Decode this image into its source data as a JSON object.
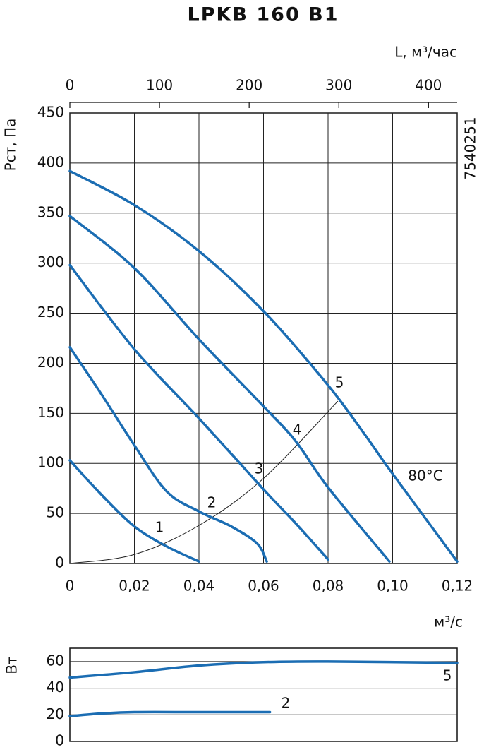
{
  "chart_data": [
    {
      "type": "line",
      "title": "LPKB 160 B1",
      "x2label": "L, м³/час",
      "ylabel": "Pст, Па",
      "xlabel": "м³/с",
      "code": "7540251",
      "annotation": "80°C",
      "grid": true,
      "xlim": [
        0,
        0.12
      ],
      "xticks": [
        0,
        {
          "value": 0.02,
          "label": "0,02"
        },
        {
          "value": 0.04,
          "label": "0,04"
        },
        {
          "value": 0.06,
          "label": "0,06"
        },
        {
          "value": 0.08,
          "label": "0,08"
        },
        {
          "value": 0.1,
          "label": "0,10"
        },
        {
          "value": 0.12,
          "label": "0,12"
        }
      ],
      "x2lim": [
        0,
        432
      ],
      "x2ticks": [
        0,
        100,
        200,
        300,
        400
      ],
      "ylim": [
        0,
        450
      ],
      "yticks": [
        0,
        50,
        100,
        150,
        200,
        250,
        300,
        350,
        400,
        450
      ],
      "series": [
        {
          "name": "1",
          "color": "#1b6db3",
          "x": [
            0,
            0.01,
            0.02,
            0.03,
            0.04
          ],
          "values": [
            103,
            68,
            37,
            17,
            2
          ]
        },
        {
          "name": "2",
          "color": "#1b6db3",
          "x": [
            0,
            0.01,
            0.02,
            0.03,
            0.04,
            0.05,
            0.058,
            0.061
          ],
          "values": [
            216,
            168,
            118,
            72,
            52,
            37,
            20,
            2
          ]
        },
        {
          "name": "3",
          "color": "#1b6db3",
          "x": [
            0,
            0.02,
            0.04,
            0.06,
            0.07,
            0.08
          ],
          "values": [
            298,
            214,
            145,
            74,
            40,
            4
          ]
        },
        {
          "name": "4",
          "color": "#1b6db3",
          "x": [
            0,
            0.02,
            0.04,
            0.06,
            0.07,
            0.08,
            0.099
          ],
          "values": [
            347,
            295,
            224,
            157,
            122,
            76,
            2
          ]
        },
        {
          "name": "5",
          "color": "#1b6db3",
          "x": [
            0,
            0.02,
            0.04,
            0.06,
            0.08,
            0.092,
            0.099,
            0.12
          ],
          "values": [
            392,
            358,
            312,
            252,
            178,
            126,
            94,
            2
          ]
        }
      ],
      "system_curve": {
        "color": "#222222",
        "x": [
          0,
          0.02,
          0.04,
          0.06,
          0.083
        ],
        "values": [
          0,
          9,
          38,
          85,
          162
        ]
      }
    },
    {
      "type": "line",
      "ylabel": "Вт",
      "grid": true,
      "xlim": [
        0,
        0.12
      ],
      "ylim": [
        0,
        70
      ],
      "yticks": [
        0,
        20,
        40,
        60
      ],
      "series": [
        {
          "name": "5",
          "color": "#1b6db3",
          "x": [
            0,
            0.02,
            0.04,
            0.06,
            0.08,
            0.12
          ],
          "values": [
            48,
            52,
            57,
            59.5,
            60,
            59
          ]
        },
        {
          "name": "2",
          "color": "#1b6db3",
          "x": [
            0,
            0.01,
            0.02,
            0.04,
            0.062
          ],
          "values": [
            19,
            21,
            22,
            22,
            22
          ]
        }
      ]
    }
  ]
}
